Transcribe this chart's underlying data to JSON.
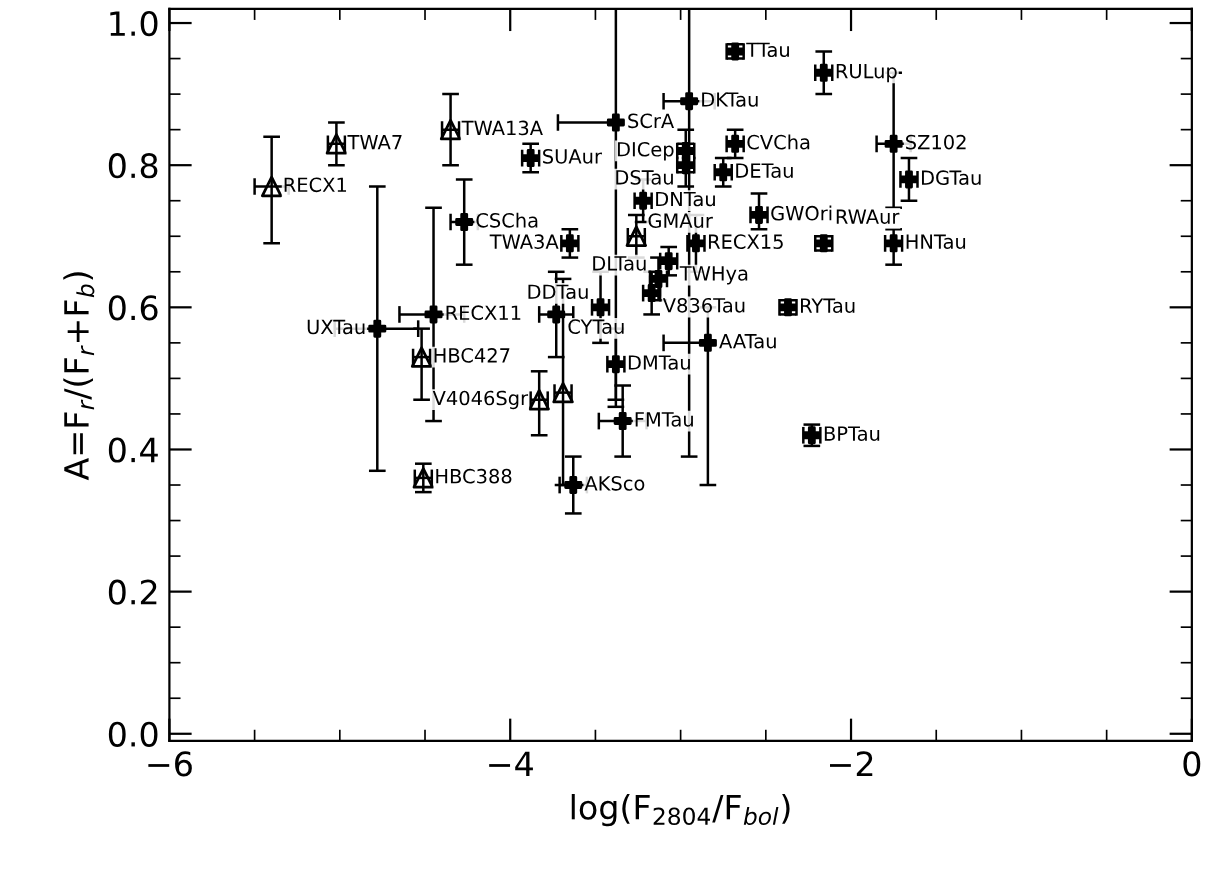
{
  "chart_data": {
    "type": "scatter",
    "xlabel": "log(F$_{2804}$/F$_{bol}$)",
    "ylabel": "A=F$_{r}$/(F$_{r}$+F$_{b}$)",
    "xlim": [
      -6,
      0
    ],
    "ylim": [
      -0.01,
      1.02
    ],
    "xticks": [
      {
        "value": -6,
        "label": "−6"
      },
      {
        "value": -4,
        "label": "−4"
      },
      {
        "value": -2,
        "label": "−2"
      },
      {
        "value": 0,
        "label": "0"
      }
    ],
    "yticks": [
      {
        "value": 0,
        "label": "0.0"
      },
      {
        "value": 0.2,
        "label": "0.2"
      },
      {
        "value": 0.4,
        "label": "0.4"
      },
      {
        "value": 0.6,
        "label": "0.6"
      },
      {
        "value": 0.8,
        "label": "0.8"
      },
      {
        "value": 1.0,
        "label": "1.0"
      }
    ],
    "grid": false,
    "legend": false,
    "series": [
      {
        "color": "#000000",
        "marker": "triangle",
        "x": [
          -5.4,
          -5.02,
          -4.35,
          -4.52,
          -4.51,
          -3.26,
          -3.83,
          -3.69
        ],
        "values": [
          0.77,
          0.83,
          0.85,
          0.53,
          0.36,
          0.7,
          0.47,
          0.48
        ],
        "errors": [
          [
            0.69,
            0.84
          ],
          0.03,
          0.05,
          [
            0.47,
            0.57
          ],
          0.02,
          0.03,
          [
            0.42,
            0.51
          ],
          [
            0.35,
            0.64
          ]
        ],
        "xerrors": [
          0.1,
          0.05,
          0.05,
          0.05,
          0.05,
          0.05,
          0.05,
          0.05
        ]
      },
      {
        "color": "#000000",
        "marker": "cross",
        "x": [
          -3.88,
          -4.27,
          -3.65,
          -4.45,
          -4.78,
          -3.73,
          -3.47,
          -3.17,
          -3.13,
          -3.07,
          -2.91,
          -3.22,
          -3.38,
          -2.95,
          -2.97,
          -2.97,
          -2.75,
          -2.68,
          -2.68,
          -2.16,
          -1.75,
          -1.66,
          -1.75,
          -2.16,
          -2.54,
          -2.37,
          -2.84,
          -3.38,
          -3.34,
          -2.23,
          -3.63
        ],
        "values": [
          0.81,
          0.72,
          0.69,
          0.59,
          0.57,
          0.59,
          0.6,
          0.62,
          0.64,
          0.665,
          0.69,
          0.75,
          0.86,
          0.89,
          0.82,
          0.8,
          0.79,
          0.83,
          0.96,
          0.93,
          0.83,
          0.78,
          0.69,
          0.69,
          0.73,
          0.6,
          0.55,
          0.52,
          0.44,
          0.42,
          0.35
        ],
        "errors": [
          0.02,
          0.06,
          0.02,
          0.15,
          0.2,
          0.06,
          0.05,
          0.03,
          0.03,
          0.02,
          0.04,
          0.03,
          [
            0.46,
            1.02
          ],
          [
            0.39,
            1.02
          ],
          0.03,
          0.03,
          0.02,
          0.02,
          0.01,
          0.03,
          [
            0.74,
            0.93
          ],
          0.03,
          [
            0.66,
            0.71
          ],
          0.01,
          [
            0.71,
            0.76
          ],
          0.01,
          [
            0.35,
            0.6
          ],
          0.05,
          0.05,
          0.015,
          0.04
        ],
        "xerrors": [
          0.05,
          0.08,
          0.05,
          [
            -4.65,
            -4.27
          ],
          [
            -5.03,
            -4.54
          ],
          0.1,
          0.05,
          0.05,
          0.05,
          0.05,
          0.05,
          0.05,
          [
            -3.72,
            -3.38
          ],
          0.15,
          0.05,
          0.05,
          0.05,
          0.05,
          0.05,
          0.05,
          0.1,
          0.05,
          0.05,
          0.05,
          0.05,
          0.05,
          [
            -3.1,
            -2.84
          ],
          0.05,
          0.14,
          0.05,
          0.08
        ]
      }
    ],
    "annotations": [
      {
        "text": "RECX1",
        "x": -5.4,
        "y": 0.77
      },
      {
        "text": "TWA7",
        "x": -5.02,
        "y": 0.83
      },
      {
        "text": "TWA13A",
        "x": -4.35,
        "y": 0.85
      },
      {
        "text": "HBC427",
        "x": -4.52,
        "y": 0.53
      },
      {
        "text": "HBC388",
        "x": -4.51,
        "y": 0.36
      },
      {
        "text": "GMAur",
        "x": -3.26,
        "y": 0.7
      },
      {
        "text": "V4046Sgr",
        "x": -3.83,
        "y": 0.47
      },
      {
        "text": "SUAur",
        "x": -3.88,
        "y": 0.81
      },
      {
        "text": "CSCha",
        "x": -4.27,
        "y": 0.72
      },
      {
        "text": "TWA3A",
        "x": -3.65,
        "y": 0.69
      },
      {
        "text": "RECX11",
        "x": -4.45,
        "y": 0.59
      },
      {
        "text": "UXTau",
        "x": -4.78,
        "y": 0.57
      },
      {
        "text": "CYTau",
        "x": -3.73,
        "y": 0.59
      },
      {
        "text": "DDTau",
        "x": -3.47,
        "y": 0.6
      },
      {
        "text": "V836Tau",
        "x": -3.17,
        "y": 0.62
      },
      {
        "text": "DLTau",
        "x": -3.13,
        "y": 0.64
      },
      {
        "text": "TWHya",
        "x": -3.07,
        "y": 0.665
      },
      {
        "text": "RECX15",
        "x": -2.91,
        "y": 0.69
      },
      {
        "text": "DNTau",
        "x": -3.22,
        "y": 0.75
      },
      {
        "text": "SCrA",
        "x": -3.38,
        "y": 0.86
      },
      {
        "text": "DKTau",
        "x": -2.95,
        "y": 0.89
      },
      {
        "text": "DICep",
        "x": -2.97,
        "y": 0.82
      },
      {
        "text": "DSTau",
        "x": -2.97,
        "y": 0.8
      },
      {
        "text": "DETau",
        "x": -2.75,
        "y": 0.79
      },
      {
        "text": "CVCha",
        "x": -2.68,
        "y": 0.83
      },
      {
        "text": "TTau",
        "x": -2.68,
        "y": 0.96
      },
      {
        "text": "RULup",
        "x": -2.16,
        "y": 0.93
      },
      {
        "text": "SZ102",
        "x": -1.75,
        "y": 0.83
      },
      {
        "text": "DGTau",
        "x": -1.66,
        "y": 0.78
      },
      {
        "text": "HNTau",
        "x": -1.75,
        "y": 0.69
      },
      {
        "text": "RWAur",
        "x": -2.16,
        "y": 0.69
      },
      {
        "text": "GWOri",
        "x": -2.54,
        "y": 0.73
      },
      {
        "text": "RYTau",
        "x": -2.37,
        "y": 0.6
      },
      {
        "text": "AATau",
        "x": -2.84,
        "y": 0.55
      },
      {
        "text": "DMTau",
        "x": -3.38,
        "y": 0.52
      },
      {
        "text": "FMTau",
        "x": -3.34,
        "y": 0.44
      },
      {
        "text": "BPTau",
        "x": -2.23,
        "y": 0.42
      },
      {
        "text": "AKSco",
        "x": -3.63,
        "y": 0.35
      }
    ]
  }
}
